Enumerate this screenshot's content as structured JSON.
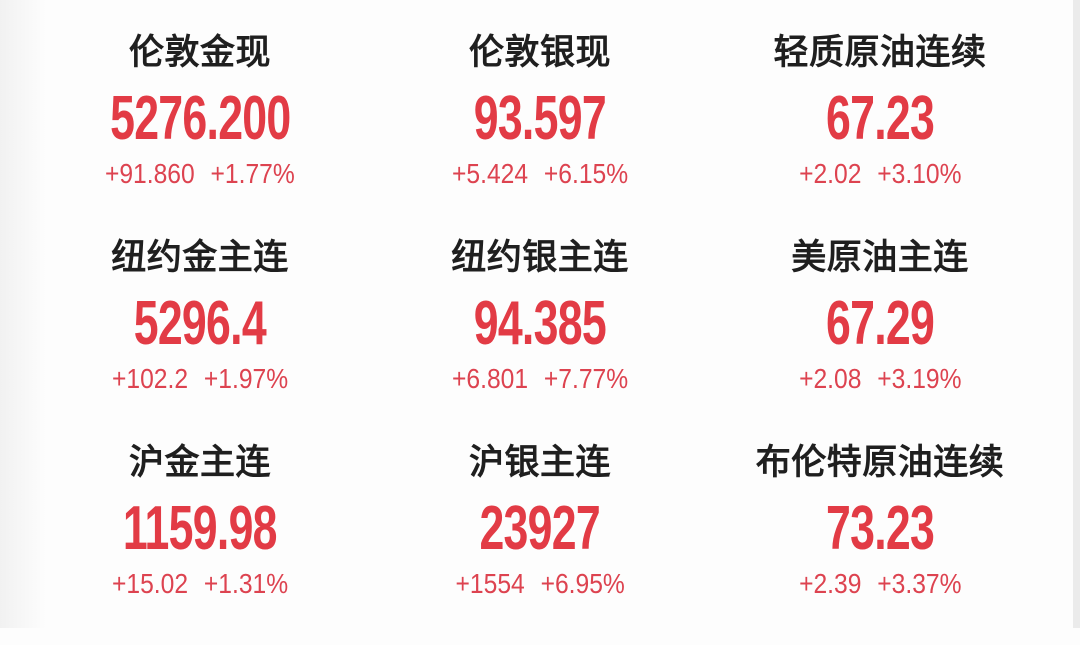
{
  "page": {
    "background": "#fdfdfd"
  },
  "colors": {
    "title_text": "#1f1f1f",
    "price_red": "#e23b45",
    "change_red": "#dd4350"
  },
  "quotes": [
    {
      "name": "伦敦金现",
      "price": "5276.200",
      "change": "+91.860",
      "change_pct": "+1.77%"
    },
    {
      "name": "伦敦银现",
      "price": "93.597",
      "change": "+5.424",
      "change_pct": "+6.15%"
    },
    {
      "name": "轻质原油连续",
      "price": "67.23",
      "change": "+2.02",
      "change_pct": "+3.10%"
    },
    {
      "name": "纽约金主连",
      "price": "5296.4",
      "change": "+102.2",
      "change_pct": "+1.97%"
    },
    {
      "name": "纽约银主连",
      "price": "94.385",
      "change": "+6.801",
      "change_pct": "+7.77%"
    },
    {
      "name": "美原油主连",
      "price": "67.29",
      "change": "+2.08",
      "change_pct": "+3.19%"
    },
    {
      "name": "沪金主连",
      "price": "1159.98",
      "change": "+15.02",
      "change_pct": "+1.31%"
    },
    {
      "name": "沪银主连",
      "price": "23927",
      "change": "+1554",
      "change_pct": "+6.95%"
    },
    {
      "name": "布伦特原油连续",
      "price": "73.23",
      "change": "+2.39",
      "change_pct": "+3.37%"
    }
  ]
}
